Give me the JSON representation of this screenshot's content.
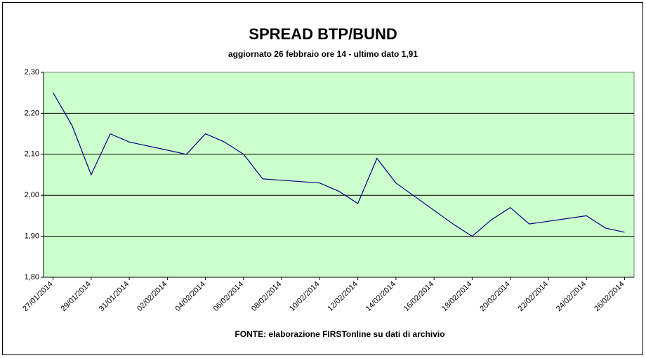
{
  "chart_data": {
    "type": "line",
    "title": "SPREAD BTP/BUND",
    "subtitle": "aggiornato 26 febbraio ore 14 - ultimo dato 1,91",
    "source": "FONTE: elaborazione FIRSTonline su dati di archivio",
    "x": [
      "27/01/2014",
      "28/01/2014",
      "29/01/2014",
      "30/01/2014",
      "31/01/2014",
      "03/02/2014",
      "04/02/2014",
      "05/02/2014",
      "06/02/2014",
      "07/02/2014",
      "10/02/2014",
      "11/02/2014",
      "12/02/2014",
      "13/02/2014",
      "14/02/2014",
      "17/02/2014",
      "18/02/2014",
      "19/02/2014",
      "20/02/2014",
      "21/02/2014",
      "24/02/2014",
      "25/02/2014",
      "26/02/2014"
    ],
    "series": [
      {
        "name": "Spread",
        "color": "#000080",
        "values": [
          2.25,
          2.17,
          2.05,
          2.15,
          2.13,
          2.1,
          2.15,
          2.13,
          2.1,
          2.04,
          2.03,
          2.01,
          1.98,
          2.09,
          2.03,
          1.93,
          1.9,
          1.94,
          1.97,
          1.93,
          1.95,
          1.92,
          1.91
        ]
      }
    ],
    "xticks": [
      "27/01/2014",
      "29/01/2014",
      "31/01/2014",
      "02/02/2014",
      "04/02/2014",
      "06/02/2014",
      "08/02/2014",
      "10/02/2014",
      "12/02/2014",
      "14/02/2014",
      "16/02/2014",
      "18/02/2014",
      "20/02/2014",
      "22/02/2014",
      "24/02/2014",
      "26/02/2014"
    ],
    "ylim": [
      1.8,
      2.3
    ],
    "yticks": [
      {
        "value": 1.8,
        "label": "1,80"
      },
      {
        "value": 1.9,
        "label": "1,90"
      },
      {
        "value": 2.0,
        "label": "2,00"
      },
      {
        "value": 2.1,
        "label": "2,10"
      },
      {
        "value": 2.2,
        "label": "2,20"
      },
      {
        "value": 2.3,
        "label": "2,30"
      }
    ],
    "grid": true,
    "plot_background": "#ccffcc"
  }
}
